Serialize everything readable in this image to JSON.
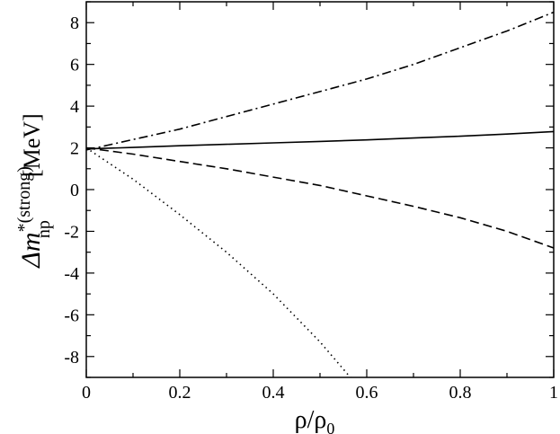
{
  "chart_data": {
    "type": "line",
    "title": "",
    "xlabel": "ρ/ρ",
    "xlabel_sub": "0",
    "ylabel": {
      "prefix": "Δm",
      "star": "*",
      "superscript": "(strong)",
      "subscript": "np",
      "unit": "[MeV]"
    },
    "xlim": [
      0,
      1
    ],
    "ylim": [
      -9,
      9
    ],
    "xticks": [
      0,
      0.2,
      0.4,
      0.6,
      0.8,
      1
    ],
    "xtick_labels": [
      "0",
      "0.2",
      "0.4",
      "0.6",
      "0.8",
      "1"
    ],
    "yticks": [
      -8,
      -6,
      -4,
      -2,
      0,
      2,
      4,
      6,
      8
    ],
    "ytick_labels": [
      "-8",
      "-6",
      "-4",
      "-2",
      "0",
      "2",
      "4",
      "6",
      "8"
    ],
    "grid": false,
    "legend": "none",
    "series": [
      {
        "style": "dash-dot",
        "color": "#000000",
        "x": [
          0,
          0.1,
          0.2,
          0.3,
          0.4,
          0.5,
          0.6,
          0.7,
          0.8,
          0.9,
          1.0
        ],
        "y": [
          1.9,
          2.4,
          2.9,
          3.5,
          4.1,
          4.7,
          5.3,
          6.0,
          6.8,
          7.6,
          8.5
        ]
      },
      {
        "style": "solid",
        "color": "#000000",
        "x": [
          0,
          0.1,
          0.2,
          0.3,
          0.4,
          0.5,
          0.6,
          0.7,
          0.8,
          0.9,
          1.0
        ],
        "y": [
          1.95,
          2.02,
          2.1,
          2.17,
          2.24,
          2.31,
          2.38,
          2.47,
          2.56,
          2.66,
          2.78
        ]
      },
      {
        "style": "dashed",
        "color": "#000000",
        "x": [
          0,
          0.1,
          0.2,
          0.3,
          0.4,
          0.5,
          0.6,
          0.7,
          0.8,
          0.9,
          1.0
        ],
        "y": [
          2.0,
          1.7,
          1.35,
          1.0,
          0.6,
          0.2,
          -0.3,
          -0.8,
          -1.35,
          -2.0,
          -2.8
        ]
      },
      {
        "style": "dotted",
        "color": "#000000",
        "x": [
          0,
          0.1,
          0.2,
          0.3,
          0.4,
          0.5,
          0.565
        ],
        "y": [
          2.0,
          0.5,
          -1.2,
          -3.0,
          -5.0,
          -7.3,
          -9.0
        ]
      }
    ]
  }
}
